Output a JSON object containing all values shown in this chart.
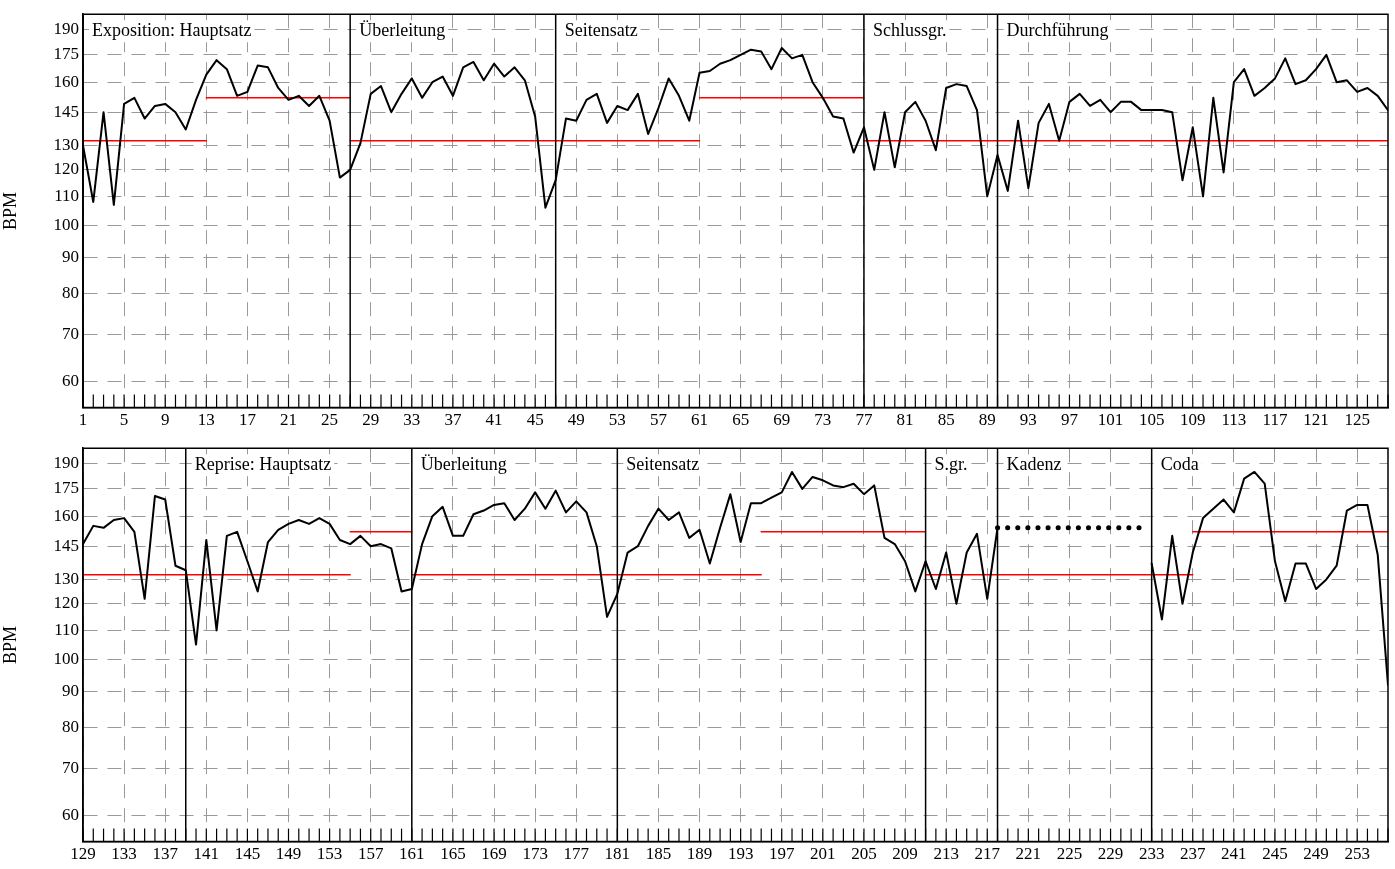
{
  "chart_data": [
    {
      "type": "line",
      "ylabel": "BPM",
      "log": "y",
      "grid": true,
      "legend": false,
      "marker": "none",
      "line_style": "solid",
      "xlim": [
        1,
        128
      ],
      "xticks": [
        1,
        5,
        9,
        13,
        17,
        21,
        25,
        29,
        33,
        37,
        41,
        45,
        49,
        53,
        57,
        61,
        65,
        69,
        73,
        77,
        81,
        85,
        89,
        93,
        97,
        101,
        105,
        109,
        113,
        117,
        121,
        125
      ],
      "ylim": [
        55,
        200
      ],
      "yticks": [
        60,
        70,
        80,
        90,
        100,
        110,
        120,
        130,
        145,
        160,
        175,
        190
      ],
      "ref_lines": [
        {
          "axis": "x",
          "value": 1,
          "label": "Exposition: Hauptsatz"
        },
        {
          "axis": "x",
          "value": 27,
          "label": "Überleitung"
        },
        {
          "axis": "x",
          "value": 47,
          "label": "Seitensatz"
        },
        {
          "axis": "x",
          "value": 77,
          "label": "Schlussgr."
        },
        {
          "axis": "x",
          "value": 90,
          "label": "Durchführung"
        }
      ],
      "series": [
        {
          "color": "#000000",
          "x": [
            1,
            2,
            3,
            4,
            5,
            6,
            7,
            8,
            9,
            10,
            11,
            12,
            13,
            14,
            15,
            16,
            17,
            18,
            19,
            20,
            21,
            22,
            23,
            24,
            25,
            26,
            27,
            28,
            29,
            30,
            31,
            32,
            33,
            34,
            35,
            36,
            37,
            38,
            39,
            40,
            41,
            42,
            43,
            44,
            45,
            46,
            47,
            48,
            49,
            50,
            51,
            52,
            53,
            54,
            55,
            56,
            57,
            58,
            59,
            60,
            61,
            62,
            63,
            64,
            65,
            66,
            67,
            68,
            69,
            70,
            71,
            72,
            73,
            74,
            75,
            76,
            77,
            78,
            79,
            80,
            81,
            82,
            83,
            84,
            85,
            86,
            87,
            88,
            89,
            90,
            91,
            92,
            93,
            94,
            95,
            96,
            97,
            98,
            99,
            100,
            101,
            102,
            103,
            104,
            105,
            106,
            107,
            108,
            109,
            110,
            111,
            112,
            113,
            114,
            115,
            116,
            117,
            118,
            119,
            120,
            121,
            122,
            123,
            124,
            125,
            126,
            127,
            128
          ],
          "values": [
            130,
            108,
            145,
            107,
            149,
            152,
            142,
            148,
            149,
            145,
            137,
            151,
            164,
            172,
            167,
            153,
            155,
            169,
            168,
            157,
            151,
            153,
            148,
            153,
            141,
            117,
            120,
            131,
            154,
            158,
            145,
            154,
            162,
            152,
            160,
            163,
            153,
            168,
            171,
            161,
            170,
            163,
            168,
            161,
            143,
            106,
            116,
            142,
            141,
            151,
            154,
            140,
            148,
            146,
            154,
            135,
            147,
            162,
            153,
            141,
            165,
            166,
            170,
            172,
            175,
            178,
            177,
            167,
            179,
            173,
            175,
            160,
            152,
            143,
            142,
            127,
            138,
            120,
            145,
            121,
            145,
            150,
            141,
            128,
            157,
            159,
            158,
            146,
            110,
            126,
            112,
            141,
            113,
            140,
            149,
            132,
            150,
            154,
            148,
            151,
            145,
            150,
            150,
            146,
            146,
            146,
            145,
            116,
            138,
            110,
            152,
            119,
            160,
            167,
            153,
            157,
            162,
            173,
            159,
            161,
            167,
            175,
            160,
            161,
            155,
            157,
            153,
            146
          ]
        },
        {
          "color": "#ff0000",
          "x": [
            1,
            13
          ],
          "values": [
            132,
            132
          ]
        },
        {
          "color": "#ff0000",
          "x": [
            13,
            27
          ],
          "values": [
            152,
            152
          ]
        },
        {
          "color": "#ff0000",
          "x": [
            27,
            61
          ],
          "values": [
            132,
            132
          ]
        },
        {
          "color": "#ff0000",
          "x": [
            61,
            77
          ],
          "values": [
            152,
            152
          ]
        },
        {
          "color": "#ff0000",
          "x": [
            77,
            128
          ],
          "values": [
            132,
            132
          ]
        }
      ]
    },
    {
      "type": "line",
      "ylabel": "BPM",
      "log": "y",
      "grid": true,
      "legend": false,
      "marker": "none",
      "line_style": "solid",
      "xlim": [
        129,
        256
      ],
      "xticks": [
        129,
        133,
        137,
        141,
        145,
        149,
        153,
        157,
        161,
        165,
        169,
        173,
        177,
        181,
        185,
        189,
        193,
        197,
        201,
        205,
        209,
        213,
        217,
        221,
        225,
        229,
        233,
        237,
        241,
        245,
        249,
        253
      ],
      "ylim": [
        55,
        200
      ],
      "yticks": [
        60,
        70,
        80,
        90,
        100,
        110,
        120,
        130,
        145,
        160,
        175,
        190
      ],
      "ref_lines": [
        {
          "axis": "x",
          "value": 139,
          "label": "Reprise: Hauptsatz"
        },
        {
          "axis": "x",
          "value": 161,
          "label": "Überleitung"
        },
        {
          "axis": "x",
          "value": 181,
          "label": "Seitensatz"
        },
        {
          "axis": "x",
          "value": 211,
          "label": "S.gr."
        },
        {
          "axis": "x",
          "value": 218,
          "label": "Kadenz"
        },
        {
          "axis": "x",
          "value": 233,
          "label": "Coda"
        }
      ],
      "series": [
        {
          "color": "#000000",
          "x": [
            129,
            130,
            131,
            132,
            133,
            134,
            135,
            136,
            137,
            138,
            139,
            140,
            141,
            142,
            143,
            144,
            145,
            146,
            147,
            148,
            149,
            150,
            151,
            152,
            153,
            154,
            155,
            156,
            157,
            158,
            159,
            160,
            161,
            162,
            163,
            164,
            165,
            166,
            167,
            168,
            169,
            170,
            171,
            172,
            173,
            174,
            175,
            176,
            177,
            178,
            179,
            180,
            181,
            182,
            183,
            184,
            185,
            186,
            187,
            188,
            189,
            190,
            191,
            192,
            193,
            194,
            195,
            196,
            197,
            198,
            199,
            200,
            201,
            202,
            203,
            204,
            205,
            206,
            207,
            208,
            209,
            210,
            211,
            212,
            213,
            214,
            215,
            216,
            217,
            218,
            219,
            220,
            221,
            222,
            223,
            224,
            225,
            226,
            227,
            228,
            229,
            230,
            231,
            232,
            233,
            234,
            235,
            236,
            237,
            238,
            239,
            240,
            241,
            242,
            243,
            244,
            245,
            246,
            247,
            248,
            249,
            250,
            251,
            252,
            253,
            254,
            255,
            256
          ],
          "values": [
            146,
            155,
            154,
            158,
            159,
            152,
            122,
            171,
            169,
            136,
            134,
            105,
            148,
            110,
            150,
            152,
            138,
            125,
            147,
            153,
            156,
            158,
            156,
            159,
            156,
            148,
            146,
            150,
            145,
            146,
            144,
            125,
            126,
            146,
            160,
            165,
            150,
            150,
            161,
            163,
            166,
            167,
            158,
            164,
            173,
            164,
            174,
            162,
            168,
            162,
            145,
            115,
            124,
            142,
            145,
            155,
            164,
            158,
            162,
            149,
            153,
            137,
            154,
            172,
            147,
            167,
            167,
            170,
            173,
            185,
            175,
            182,
            180,
            177,
            176,
            178,
            172,
            177,
            149,
            146,
            138,
            125,
            138,
            126,
            142,
            120,
            142,
            151,
            122,
            154,
            null,
            null,
            null,
            null,
            null,
            null,
            null,
            null,
            null,
            null,
            null,
            null,
            null,
            null,
            137,
            114,
            150,
            120,
            142,
            159,
            164,
            169,
            162,
            181,
            185,
            178,
            138,
            121,
            137,
            137,
            126,
            130,
            136,
            163,
            166,
            166,
            141,
            92
          ]
        },
        {
          "color": "#000000",
          "line_style": "dotted",
          "x": [
            218,
            219,
            220,
            221,
            222,
            223,
            224,
            225,
            226,
            227,
            228,
            229,
            230,
            231,
            232
          ],
          "values": [
            154,
            154,
            154,
            154,
            154,
            154,
            154,
            154,
            154,
            154,
            154,
            154,
            154,
            154,
            154
          ]
        },
        {
          "color": "#ff0000",
          "x": [
            129,
            155
          ],
          "values": [
            132,
            132
          ]
        },
        {
          "color": "#ff0000",
          "x": [
            155,
            161
          ],
          "values": [
            152,
            152
          ]
        },
        {
          "color": "#ff0000",
          "x": [
            161,
            195
          ],
          "values": [
            132,
            132
          ]
        },
        {
          "color": "#ff0000",
          "x": [
            195,
            211
          ],
          "values": [
            152,
            152
          ]
        },
        {
          "color": "#ff0000",
          "x": [
            211,
            237
          ],
          "values": [
            132,
            132
          ]
        },
        {
          "color": "#ff0000",
          "x": [
            237,
            256
          ],
          "values": [
            152,
            152
          ]
        }
      ]
    }
  ]
}
